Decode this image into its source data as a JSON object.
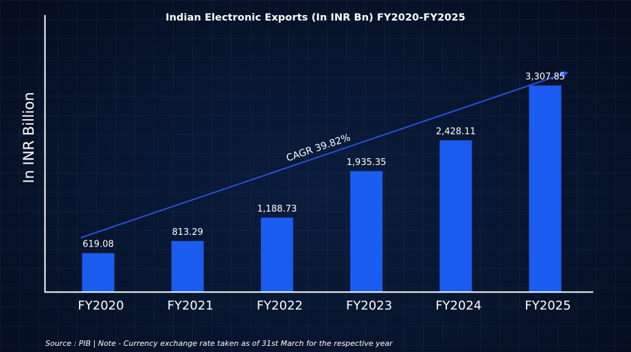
{
  "chart_data": {
    "type": "bar",
    "title": "Indian Electronic Exports (In INR Bn) FY2020-FY2025",
    "ylabel": "In INR Billion",
    "xlabel": "",
    "categories": [
      "FY2020",
      "FY2021",
      "FY2022",
      "FY2023",
      "FY2024",
      "FY2025"
    ],
    "values": [
      619.08,
      813.29,
      1188.73,
      1935.35,
      2428.11,
      3307.85
    ],
    "value_labels": [
      "619.08",
      "813.29",
      "1,188.73",
      "1,935.35",
      "2,428.11",
      "3,307.85"
    ],
    "ylim": [
      0,
      3800
    ],
    "grid": false,
    "bar_color": "#1a5cf0",
    "annotation": {
      "text": "CAGR 39.82%",
      "arrow_color": "#2a4fe0"
    }
  },
  "footer": "Source : PIB | Note - Currency exchange rate taken as of 31st March for the respective year"
}
